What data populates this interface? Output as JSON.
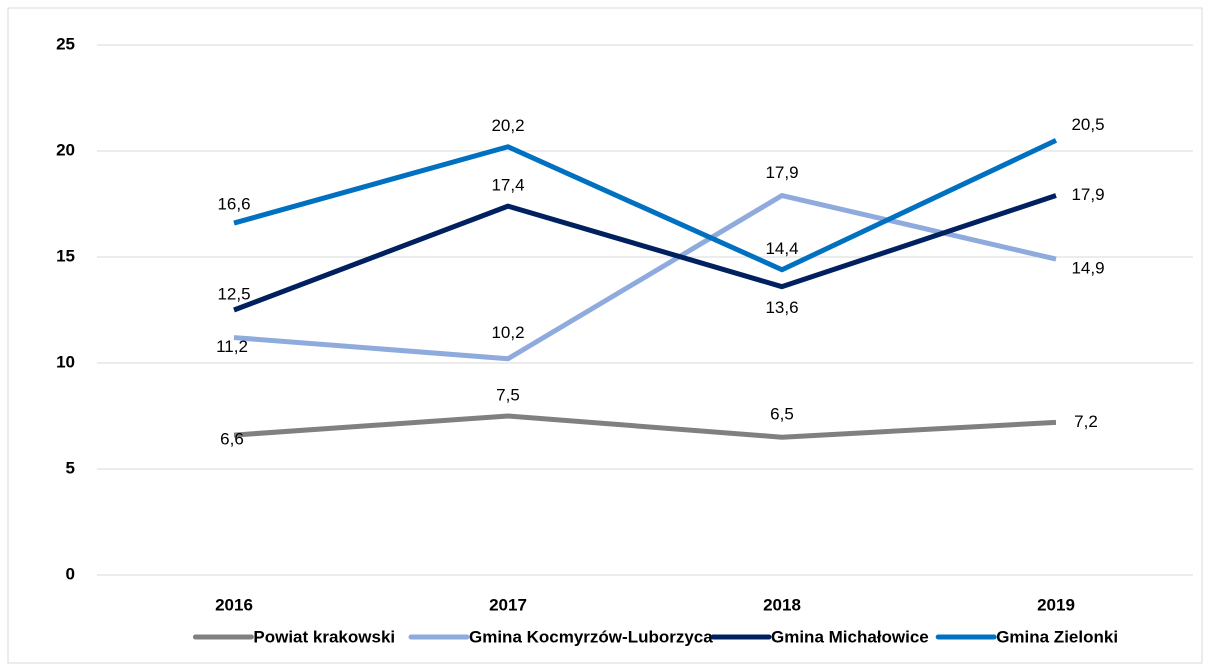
{
  "chart_data": {
    "type": "line",
    "categories": [
      "2016",
      "2017",
      "2018",
      "2019"
    ],
    "series": [
      {
        "name": "Powiat krakowski",
        "color": "#808080",
        "values": [
          6.6,
          7.5,
          6.5,
          7.2
        ],
        "value_labels": [
          "6,6",
          "7,5",
          "6,5",
          "7,2"
        ]
      },
      {
        "name": "Gmina Kocmyrzów-Luborzyca",
        "color": "#8faadc",
        "values": [
          11.2,
          10.2,
          17.9,
          14.9
        ],
        "value_labels": [
          "11,2",
          "10,2",
          "17,9",
          "14,9"
        ]
      },
      {
        "name": "Gmina Michałowice",
        "color": "#002060",
        "values": [
          12.5,
          17.4,
          13.6,
          17.9
        ],
        "value_labels": [
          "12,5",
          "17,4",
          "13,6",
          "17,9"
        ]
      },
      {
        "name": "Gmina Zielonki",
        "color": "#0070c0",
        "values": [
          16.6,
          20.2,
          14.4,
          20.5
        ],
        "value_labels": [
          "16,6",
          "20,2",
          "14,4",
          "20,5"
        ]
      }
    ],
    "ylim": [
      0,
      25
    ],
    "yticks": [
      0,
      5,
      10,
      15,
      20,
      25
    ],
    "grid": true,
    "legend": "bottom"
  }
}
